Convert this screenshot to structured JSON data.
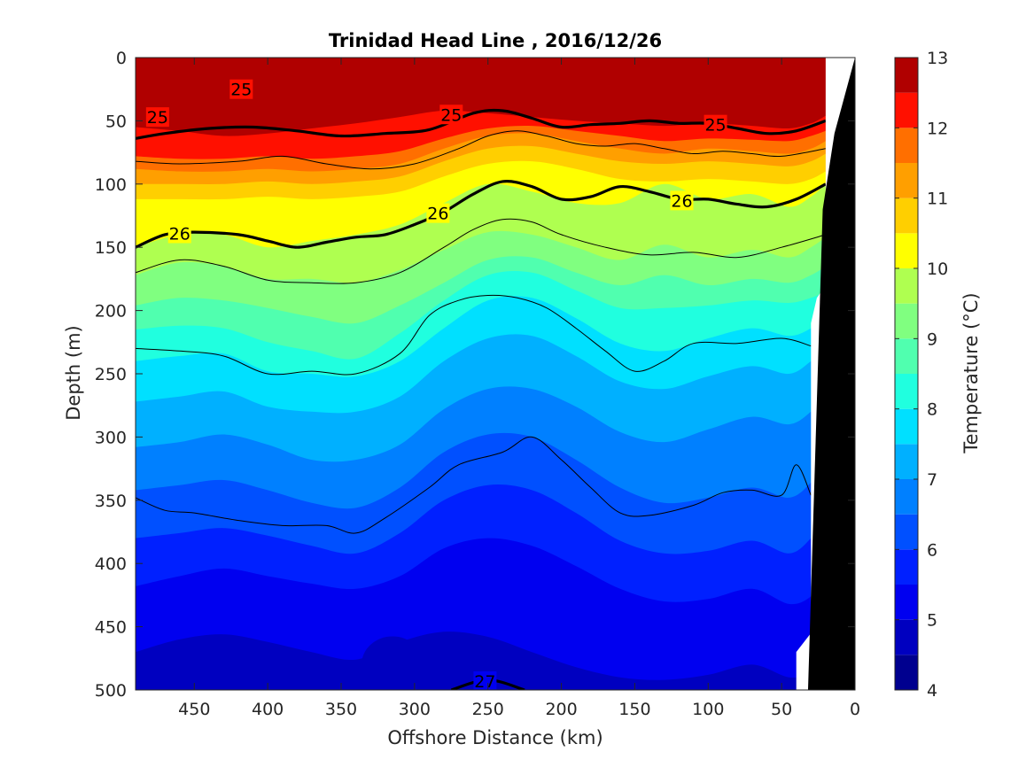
{
  "chart_data": {
    "type": "contour",
    "title": "Trinidad Head Line , 2016/12/26",
    "xlabel": "Offshore Distance (km)",
    "ylabel": "Depth (m)",
    "colorbar_label": "Temperature (°C)",
    "xlim": [
      490,
      0
    ],
    "ylim": [
      0,
      500
    ],
    "x_reversed": true,
    "y_reversed": true,
    "xticks": [
      450,
      400,
      350,
      300,
      250,
      200,
      150,
      100,
      50,
      0
    ],
    "yticks": [
      0,
      50,
      100,
      150,
      200,
      250,
      300,
      350,
      400,
      450,
      500
    ],
    "colorbar": {
      "min": 4,
      "max": 13,
      "ticks": [
        4,
        5,
        6,
        7,
        8,
        9,
        10,
        11,
        12,
        13
      ],
      "levels": [
        {
          "from": 4.0,
          "to": 4.5,
          "color": "#00008f"
        },
        {
          "from": 4.5,
          "to": 5.0,
          "color": "#0000c0"
        },
        {
          "from": 5.0,
          "to": 5.5,
          "color": "#0000f0"
        },
        {
          "from": 5.5,
          "to": 6.0,
          "color": "#0020ff"
        },
        {
          "from": 6.0,
          "to": 6.5,
          "color": "#0050ff"
        },
        {
          "from": 6.5,
          "to": 7.0,
          "color": "#0080ff"
        },
        {
          "from": 7.0,
          "to": 7.5,
          "color": "#00b0ff"
        },
        {
          "from": 7.5,
          "to": 8.0,
          "color": "#00e0ff"
        },
        {
          "from": 8.0,
          "to": 8.5,
          "color": "#20ffdf"
        },
        {
          "from": 8.5,
          "to": 9.0,
          "color": "#50ffaf"
        },
        {
          "from": 9.0,
          "to": 9.5,
          "color": "#80ff80"
        },
        {
          "from": 9.5,
          "to": 10.0,
          "color": "#afff50"
        },
        {
          "from": 10.0,
          "to": 10.5,
          "color": "#ffff00"
        },
        {
          "from": 10.5,
          "to": 11.0,
          "color": "#ffcf00"
        },
        {
          "from": 11.0,
          "to": 11.5,
          "color": "#ff9f00"
        },
        {
          "from": 11.5,
          "to": 12.0,
          "color": "#ff6f00"
        },
        {
          "from": 12.0,
          "to": 12.5,
          "color": "#ff1000"
        },
        {
          "from": 12.5,
          "to": 13.0,
          "color": "#b00000"
        }
      ]
    },
    "temperature_bands": [
      {
        "temp": 12.2,
        "depth": [
          55,
          58,
          62,
          60,
          56,
          52,
          47,
          42,
          44,
          47,
          50,
          52,
          54,
          52,
          54,
          56,
          52,
          46
        ]
      },
      {
        "temp": 11.7,
        "depth": [
          78,
          80,
          80,
          78,
          80,
          78,
          74,
          64,
          56,
          54,
          58,
          62,
          66,
          64,
          65,
          66,
          62,
          58
        ]
      },
      {
        "temp": 11.2,
        "depth": [
          88,
          90,
          90,
          88,
          90,
          88,
          84,
          72,
          62,
          60,
          66,
          72,
          76,
          72,
          74,
          76,
          72,
          66
        ]
      },
      {
        "temp": 10.7,
        "depth": [
          100,
          100,
          100,
          98,
          100,
          98,
          94,
          82,
          72,
          70,
          76,
          82,
          84,
          82,
          84,
          86,
          82,
          76
        ]
      },
      {
        "temp": 10.2,
        "depth": [
          112,
          112,
          112,
          110,
          112,
          110,
          106,
          94,
          84,
          82,
          88,
          96,
          98,
          96,
          98,
          100,
          96,
          90
        ]
      },
      {
        "temp": 9.7,
        "depth": [
          150,
          140,
          140,
          150,
          145,
          140,
          132,
          115,
          100,
          106,
          115,
          115,
          100,
          112,
          108,
          118,
          110,
          100
        ]
      },
      {
        "temp": 9.2,
        "depth": [
          172,
          162,
          165,
          175,
          175,
          178,
          168,
          152,
          138,
          140,
          150,
          160,
          148,
          158,
          152,
          158,
          150,
          142
        ]
      },
      {
        "temp": 8.7,
        "depth": [
          196,
          190,
          192,
          198,
          205,
          210,
          196,
          178,
          160,
          158,
          170,
          180,
          172,
          180,
          175,
          178,
          172,
          165
        ]
      },
      {
        "temp": 8.2,
        "depth": [
          215,
          212,
          214,
          225,
          232,
          238,
          218,
          192,
          172,
          170,
          184,
          198,
          198,
          196,
          192,
          194,
          190,
          185
        ]
      },
      {
        "temp": 7.7,
        "depth": [
          240,
          236,
          234,
          248,
          250,
          252,
          240,
          214,
          192,
          190,
          206,
          226,
          232,
          222,
          214,
          220,
          214,
          205
        ]
      },
      {
        "temp": 7.2,
        "depth": [
          272,
          268,
          264,
          276,
          280,
          280,
          268,
          240,
          222,
          220,
          236,
          256,
          262,
          252,
          244,
          250,
          240,
          230
        ]
      },
      {
        "temp": 6.7,
        "depth": [
          308,
          304,
          298,
          306,
          318,
          318,
          306,
          278,
          262,
          262,
          276,
          296,
          304,
          294,
          284,
          290,
          280,
          268
        ]
      },
      {
        "temp": 6.2,
        "depth": [
          342,
          338,
          334,
          342,
          352,
          356,
          340,
          312,
          298,
          300,
          318,
          340,
          352,
          348,
          340,
          348,
          336,
          320
        ]
      },
      {
        "temp": 5.7,
        "depth": [
          380,
          376,
          372,
          378,
          386,
          392,
          376,
          350,
          338,
          342,
          360,
          382,
          392,
          390,
          382,
          392,
          380,
          364
        ]
      },
      {
        "temp": 5.2,
        "depth": [
          418,
          410,
          404,
          410,
          416,
          420,
          410,
          388,
          380,
          386,
          402,
          420,
          430,
          428,
          420,
          432,
          426,
          410
        ]
      },
      {
        "temp": 4.7,
        "depth": [
          470,
          460,
          456,
          462,
          470,
          476,
          462,
          454,
          458,
          470,
          482,
          490,
          492,
          488,
          480,
          490,
          486,
          476
        ]
      }
    ],
    "band_x": [
      490,
      460,
      430,
      400,
      370,
      340,
      310,
      280,
      250,
      220,
      190,
      160,
      130,
      100,
      70,
      45,
      30,
      20
    ],
    "isopycnals": [
      {
        "label": "25",
        "bold": true,
        "x": [
          490,
          470,
          440,
          410,
          380,
          350,
          320,
          290,
          260,
          240,
          220,
          200,
          180,
          160,
          140,
          120,
          100,
          80,
          60,
          40,
          20
        ],
        "depth": [
          64,
          60,
          56,
          55,
          58,
          62,
          60,
          57,
          44,
          42,
          48,
          55,
          53,
          52,
          50,
          52,
          52,
          56,
          60,
          58,
          50
        ]
      },
      {
        "label": "",
        "bold": false,
        "x": [
          490,
          460,
          420,
          390,
          360,
          330,
          300,
          270,
          250,
          230,
          210,
          190,
          170,
          150,
          130,
          110,
          90,
          70,
          50,
          20
        ],
        "depth": [
          82,
          84,
          82,
          78,
          84,
          88,
          84,
          72,
          62,
          58,
          62,
          68,
          70,
          68,
          72,
          76,
          74,
          76,
          78,
          72
        ]
      },
      {
        "label": "26",
        "bold": true,
        "x": [
          490,
          470,
          450,
          420,
          400,
          380,
          360,
          340,
          320,
          300,
          280,
          260,
          240,
          220,
          200,
          180,
          160,
          140,
          120,
          100,
          80,
          60,
          40,
          20
        ],
        "depth": [
          150,
          140,
          138,
          140,
          145,
          150,
          146,
          142,
          140,
          132,
          122,
          108,
          98,
          102,
          112,
          110,
          102,
          106,
          112,
          112,
          116,
          118,
          112,
          100
        ]
      },
      {
        "label": "",
        "bold": false,
        "x": [
          490,
          460,
          430,
          400,
          370,
          340,
          310,
          280,
          260,
          240,
          220,
          200,
          170,
          140,
          110,
          80,
          50,
          20
        ],
        "depth": [
          170,
          160,
          165,
          176,
          178,
          178,
          170,
          150,
          136,
          128,
          130,
          140,
          150,
          156,
          154,
          158,
          150,
          140
        ]
      },
      {
        "label": "",
        "bold": false,
        "x": [
          490,
          460,
          430,
          400,
          370,
          340,
          310,
          290,
          270,
          250,
          230,
          210,
          190,
          170,
          150,
          130,
          110,
          80,
          50,
          30
        ],
        "depth": [
          230,
          232,
          236,
          250,
          248,
          250,
          234,
          204,
          192,
          188,
          190,
          198,
          214,
          232,
          248,
          240,
          226,
          226,
          222,
          228
        ]
      },
      {
        "label": "",
        "bold": false,
        "x": [
          490,
          470,
          450,
          420,
          390,
          360,
          340,
          320,
          290,
          270,
          240,
          220,
          200,
          180,
          160,
          140,
          110,
          90,
          70,
          50,
          40,
          30
        ],
        "depth": [
          348,
          358,
          360,
          366,
          370,
          370,
          376,
          364,
          340,
          322,
          312,
          300,
          318,
          340,
          360,
          362,
          354,
          344,
          342,
          346,
          322,
          346
        ]
      },
      {
        "label": "27",
        "bold": true,
        "x": [
          275,
          250,
          225
        ],
        "depth": [
          500,
          492,
          500
        ]
      }
    ],
    "contour_labels": [
      {
        "text": "25",
        "x": 475,
        "depth": 47
      },
      {
        "text": "25",
        "x": 418,
        "depth": 25
      },
      {
        "text": "25",
        "x": 275,
        "depth": 45
      },
      {
        "text": "25",
        "x": 95,
        "depth": 53
      },
      {
        "text": "26",
        "x": 460,
        "depth": 139
      },
      {
        "text": "26",
        "x": 284,
        "depth": 123
      },
      {
        "text": "26",
        "x": 118,
        "depth": 113
      },
      {
        "text": "27",
        "x": 252,
        "depth": 493
      }
    ],
    "warm_cores": [
      {
        "x": 340,
        "depth": 20,
        "rx": 30,
        "ry": 30,
        "temp": 12.8
      },
      {
        "x": 208,
        "depth": 20,
        "rx": 22,
        "ry": 25,
        "temp": 12.8
      }
    ],
    "cold_cores": [
      {
        "x": 430,
        "depth": 480,
        "rx": 40,
        "ry": 30,
        "temp": 4.6
      },
      {
        "x": 315,
        "depth": 480,
        "rx": 35,
        "ry": 32,
        "temp": 4.6
      }
    ],
    "bathymetry": {
      "x": [
        0,
        26,
        30,
        34,
        40,
        42
      ],
      "depth": [
        0,
        500,
        500,
        500,
        500,
        500
      ]
    }
  }
}
